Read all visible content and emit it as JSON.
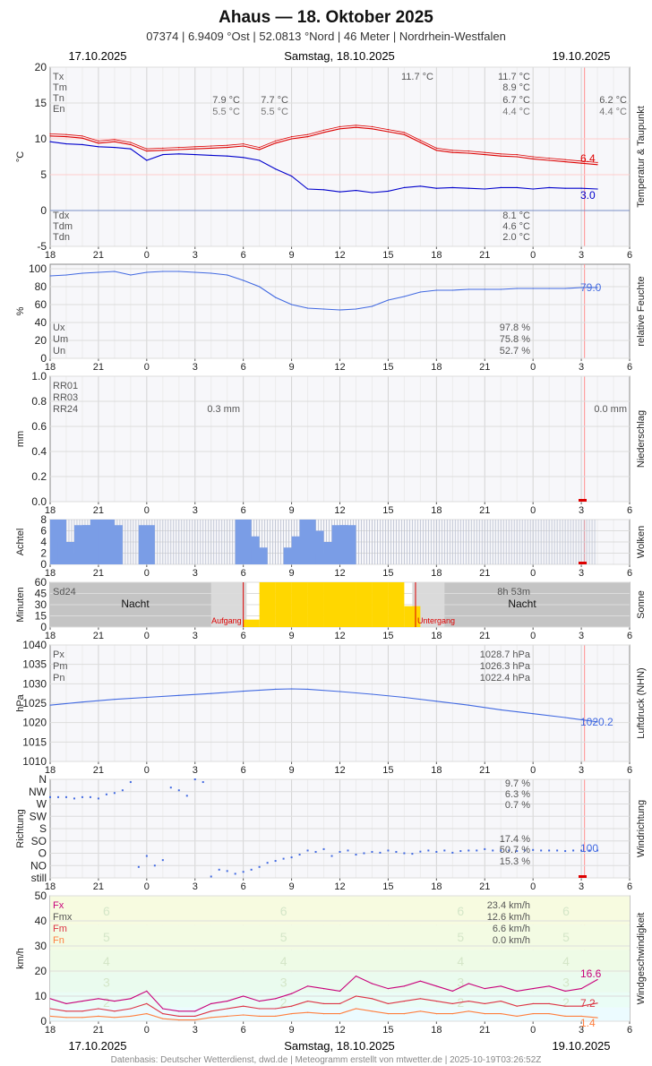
{
  "header": {
    "title": "Ahaus  —  18. Oktober 2025",
    "subtitle": "07374  |  6.9409 °Ost  |  52.0813 °Nord  |  46 Meter  |  Nordrhein-Westfalen"
  },
  "dates": {
    "left": "17.10.2025",
    "center": "Samstag, 18.10.2025",
    "right": "19.10.2025"
  },
  "footer": "Datenbasis: Deutscher Wetterdienst, dwd.de | Meteogramm erstellt von mtwetter.de | 2025-10-19T03:26:52Z",
  "colors": {
    "red": "#dd0000",
    "blue": "#0000cc",
    "royal": "#4169e1",
    "grid": "#d8d8d8",
    "gold": "#ffd700",
    "magenta": "#c8007a",
    "crimson": "#dd3344",
    "orange": "#ff7f3f"
  },
  "x_ticks": [
    "18",
    "21",
    "0",
    "3",
    "6",
    "9",
    "12",
    "15",
    "18",
    "21",
    "0",
    "3",
    "6"
  ],
  "chart_data": [
    {
      "id": "temperature",
      "type": "line",
      "ylabel": "°C",
      "side_label": "Temperatur & Taupunkt",
      "ylim": [
        -5,
        20
      ],
      "yticks": [
        "-5",
        "0",
        "5",
        "10",
        "15",
        "20"
      ],
      "x_unit": "hours since 17.10.2025 18:00",
      "xlim": [
        0,
        36
      ],
      "legend_top": [
        "Tx",
        "Tm",
        "Tn",
        "En"
      ],
      "legend_bottom": [
        "Tdx",
        "Tdm",
        "Tdn"
      ],
      "stats_top": [
        {
          "col": "a",
          "tn": "7.9 °C",
          "en": "5.5 °C"
        },
        {
          "col": "b",
          "tn": "7.7 °C",
          "en": "5.5 °C"
        },
        {
          "col": "c",
          "tx": "11.7 °C"
        },
        {
          "col": "d",
          "tx": "11.7 °C",
          "tm": "8.9 °C",
          "tn": "6.7 °C",
          "en": "4.4 °C"
        },
        {
          "col": "e",
          "tn": "6.2 °C",
          "en": "4.4 °C"
        }
      ],
      "stats_bottom": [
        "8.1 °C",
        "4.6 °C",
        "2.0 °C"
      ],
      "end_labels": {
        "temp": "6.4",
        "dew": "3.0"
      },
      "series": [
        {
          "name": "Temperatur",
          "color": "red",
          "x": [
            0,
            1,
            2,
            3,
            4,
            5,
            6,
            7,
            8,
            9,
            10,
            11,
            12,
            13,
            14,
            15,
            16,
            17,
            18,
            19,
            20,
            21,
            22,
            23,
            24,
            25,
            26,
            27,
            28,
            29,
            30,
            31,
            32,
            33,
            34
          ],
          "values": [
            10.4,
            10.3,
            10.1,
            9.4,
            9.6,
            9.2,
            8.3,
            8.4,
            8.5,
            8.6,
            8.7,
            8.8,
            9.0,
            8.5,
            9.4,
            10.0,
            10.3,
            10.9,
            11.4,
            11.6,
            11.4,
            11.0,
            10.6,
            9.5,
            8.4,
            8.1,
            8.0,
            7.8,
            7.6,
            7.5,
            7.2,
            7.0,
            6.8,
            6.6,
            6.4
          ]
        },
        {
          "name": "Taupunkt",
          "color": "blue",
          "x": [
            0,
            1,
            2,
            3,
            4,
            5,
            6,
            7,
            8,
            9,
            10,
            11,
            12,
            13,
            14,
            15,
            16,
            17,
            18,
            19,
            20,
            21,
            22,
            23,
            24,
            25,
            26,
            27,
            28,
            29,
            30,
            31,
            32,
            33,
            34
          ],
          "values": [
            9.6,
            9.3,
            9.2,
            8.9,
            8.8,
            8.6,
            7.0,
            7.8,
            7.9,
            7.8,
            7.7,
            7.6,
            7.4,
            7.0,
            5.8,
            4.8,
            3.0,
            2.9,
            2.6,
            2.8,
            2.5,
            2.7,
            3.2,
            3.4,
            3.1,
            3.2,
            3.1,
            3.0,
            3.2,
            3.2,
            3.0,
            3.2,
            3.1,
            3.1,
            3.0
          ]
        }
      ]
    },
    {
      "id": "humidity",
      "type": "line",
      "ylabel": "%",
      "side_label": "relative Feuchte",
      "ylim": [
        0,
        105
      ],
      "yticks": [
        "0",
        "20",
        "40",
        "60",
        "80",
        "100"
      ],
      "legend": [
        "Ux",
        "Um",
        "Un"
      ],
      "stats": [
        "97.8 %",
        "75.8 %",
        "52.7 %"
      ],
      "end_label": "79.0",
      "series": [
        {
          "name": "relative Feuchte",
          "color": "royal",
          "x": [
            0,
            1,
            2,
            3,
            4,
            5,
            6,
            7,
            8,
            9,
            10,
            11,
            12,
            13,
            14,
            15,
            16,
            17,
            18,
            19,
            20,
            21,
            22,
            23,
            24,
            25,
            26,
            27,
            28,
            29,
            30,
            31,
            32,
            33,
            34
          ],
          "values": [
            92,
            93,
            95,
            96,
            97,
            93,
            96,
            97,
            97,
            96,
            95,
            93,
            87,
            80,
            68,
            60,
            56,
            55,
            54,
            55,
            58,
            65,
            69,
            74,
            76,
            76,
            77,
            77,
            77,
            78,
            78,
            78,
            78,
            79,
            79
          ]
        }
      ]
    },
    {
      "id": "precipitation",
      "type": "bar",
      "ylabel": "mm",
      "side_label": "Niederschlag",
      "ylim": [
        0,
        1.0
      ],
      "yticks": [
        "0.0",
        "0.2",
        "0.4",
        "0.6",
        "0.8",
        "1.0"
      ],
      "legend": [
        "RR01",
        "RR03",
        "RR24"
      ],
      "stats": [
        "0.3 mm",
        "0.0 mm"
      ],
      "values": []
    },
    {
      "id": "clouds",
      "type": "bar",
      "ylabel": "Achtel",
      "side_label": "Wolken",
      "ylim": [
        0,
        8
      ],
      "yticks": [
        "0",
        "2",
        "4",
        "6",
        "8"
      ],
      "x": [
        0.5,
        1,
        1.5,
        2,
        2.5,
        3,
        3.5,
        4,
        6,
        11.5,
        12,
        12.5,
        13,
        13.5,
        14,
        14.5,
        15,
        15.5,
        16,
        16.5,
        17,
        17.5,
        18,
        18.5
      ],
      "values": [
        8,
        4,
        2,
        7,
        7,
        8,
        8,
        7,
        7,
        0,
        8,
        5,
        3,
        0,
        0,
        0,
        3,
        5,
        8,
        6,
        2,
        4,
        7,
        7
      ]
    },
    {
      "id": "sunshine",
      "type": "bar",
      "ylabel": "Minuten",
      "side_label": "Sonne",
      "ylim": [
        0,
        60
      ],
      "yticks": [
        "0",
        "15",
        "30",
        "45",
        "60"
      ],
      "legend": [
        "Sd24"
      ],
      "stats": [
        "8h 53m"
      ],
      "night_labels": [
        "Nacht",
        "Nacht"
      ],
      "sunrise_label": "Aufgang",
      "sunset_label": "Untergang",
      "sunrise_x": 12.0,
      "sunset_x": 22.7,
      "x": [
        12,
        13,
        14,
        15,
        16,
        17,
        18,
        19,
        20,
        21,
        22
      ],
      "values": [
        10,
        60,
        60,
        60,
        60,
        60,
        60,
        60,
        60,
        60,
        28
      ]
    },
    {
      "id": "pressure",
      "type": "line",
      "ylabel": "hPa",
      "side_label": "Luftdruck (NHN)",
      "ylim": [
        1010,
        1040
      ],
      "yticks": [
        "1010",
        "1015",
        "1020",
        "1025",
        "1030",
        "1035",
        "1040"
      ],
      "legend": [
        "Px",
        "Pm",
        "Pn"
      ],
      "stats": [
        "1028.7 hPa",
        "1026.3 hPa",
        "1022.4 hPa"
      ],
      "end_label": "1020.2",
      "series": [
        {
          "name": "Luftdruck",
          "color": "royal",
          "x": [
            0,
            2,
            4,
            6,
            8,
            10,
            12,
            14,
            15,
            16,
            18,
            20,
            22,
            24,
            26,
            28,
            30,
            32,
            34
          ],
          "values": [
            1024.5,
            1025.3,
            1026.0,
            1026.5,
            1027.0,
            1027.5,
            1028.1,
            1028.6,
            1028.7,
            1028.6,
            1028.0,
            1027.3,
            1026.5,
            1025.5,
            1024.5,
            1023.3,
            1022.3,
            1021.3,
            1020.2
          ]
        }
      ]
    },
    {
      "id": "wind_direction",
      "type": "scatter",
      "ylabel": "Richtung",
      "side_label": "Windrichtung",
      "categories": [
        "still",
        "NO",
        "O",
        "SO",
        "S",
        "SW",
        "W",
        "NW",
        "N"
      ],
      "stats": [
        "9.7 %",
        "6.3 %",
        "0.7 %",
        "17.4 %",
        "50.7 %",
        "15.3 %"
      ],
      "end_label": "100",
      "x": [
        0,
        0.5,
        1,
        1.5,
        2,
        2.5,
        3,
        3.5,
        4,
        4.5,
        5,
        5.5,
        6,
        6.5,
        7,
        7.5,
        8,
        8.5,
        9,
        9.5,
        10,
        10.5,
        11,
        11.5,
        12,
        12.5,
        13,
        13.5,
        14,
        14.5,
        15,
        15.5,
        16,
        16.5,
        17,
        17.5,
        18,
        18.5,
        19,
        19.5,
        20,
        20.5,
        21,
        21.5,
        22,
        22.5,
        23,
        23.5,
        24,
        24.5,
        25,
        25.5,
        26,
        26.5,
        27,
        27.5,
        28,
        28.5,
        29,
        29.5,
        30,
        30.5,
        31,
        31.5,
        32,
        32.5,
        33,
        33.5,
        34
      ],
      "values": [
        295,
        295,
        295,
        290,
        295,
        295,
        290,
        305,
        310,
        320,
        350,
        40,
        80,
        45,
        65,
        330,
        320,
        300,
        360,
        350,
        5,
        30,
        25,
        15,
        22,
        30,
        40,
        55,
        62,
        70,
        75,
        85,
        100,
        95,
        105,
        80,
        95,
        100,
        85,
        90,
        95,
        92,
        100,
        95,
        90,
        88,
        96,
        100,
        95,
        100,
        92,
        98,
        100,
        100,
        105,
        100,
        100,
        100,
        98,
        100,
        102,
        100,
        100,
        100,
        98,
        100,
        100,
        100,
        100
      ]
    },
    {
      "id": "wind_speed",
      "type": "line",
      "ylabel": "km/h",
      "side_label": "Windgeschwindigkeit",
      "ylim": [
        0,
        50
      ],
      "yticks": [
        "0",
        "10",
        "20",
        "30",
        "40",
        "50"
      ],
      "legend": [
        "Fx",
        "Fmx",
        "Fm",
        "Fn"
      ],
      "stats": [
        "23.4 km/h",
        "12.6 km/h",
        "6.6 km/h",
        "0.0 km/h"
      ],
      "beaufort": [
        "2",
        "3",
        "4",
        "5",
        "6"
      ],
      "end_labels": [
        "16.6",
        "7.2",
        "1.4"
      ],
      "series": [
        {
          "name": "Fx",
          "color": "magenta",
          "x": [
            0,
            1,
            2,
            3,
            4,
            5,
            6,
            7,
            8,
            9,
            10,
            11,
            12,
            13,
            14,
            15,
            16,
            17,
            18,
            19,
            20,
            21,
            22,
            23,
            24,
            25,
            26,
            27,
            28,
            29,
            30,
            31,
            32,
            33,
            34
          ],
          "values": [
            9,
            7,
            8,
            9,
            8,
            9,
            12,
            5,
            4,
            4,
            7,
            8,
            10,
            8,
            9,
            11,
            14,
            13,
            12,
            18,
            15,
            13,
            14,
            16,
            14,
            12,
            15,
            13,
            14,
            12,
            13,
            14,
            12,
            13,
            16.6
          ]
        },
        {
          "name": "Fm",
          "color": "crimson",
          "x": [
            0,
            1,
            2,
            3,
            4,
            5,
            6,
            7,
            8,
            9,
            10,
            11,
            12,
            13,
            14,
            15,
            16,
            17,
            18,
            19,
            20,
            21,
            22,
            23,
            24,
            25,
            26,
            27,
            28,
            29,
            30,
            31,
            32,
            33,
            34
          ],
          "values": [
            5,
            4,
            4,
            5,
            4,
            5,
            7,
            3,
            2,
            2,
            4,
            5,
            6,
            5,
            5,
            6,
            8,
            7,
            7,
            10,
            9,
            7,
            8,
            9,
            8,
            7,
            8,
            7,
            8,
            6,
            7,
            7,
            6,
            6,
            7.2
          ]
        },
        {
          "name": "Fn",
          "color": "orange",
          "x": [
            0,
            1,
            2,
            3,
            4,
            5,
            6,
            7,
            8,
            9,
            10,
            11,
            12,
            13,
            14,
            15,
            16,
            17,
            18,
            19,
            20,
            21,
            22,
            23,
            24,
            25,
            26,
            27,
            28,
            29,
            30,
            31,
            32,
            33,
            34
          ],
          "values": [
            2,
            1.5,
            1.5,
            2,
            1.5,
            2,
            3,
            1,
            0.5,
            0.5,
            1.5,
            2,
            2.5,
            2,
            2,
            3,
            3.5,
            3,
            3,
            5,
            4,
            3,
            3,
            4,
            3,
            3,
            4,
            3,
            3,
            2,
            3,
            3,
            2,
            2,
            1.4
          ]
        }
      ]
    }
  ]
}
